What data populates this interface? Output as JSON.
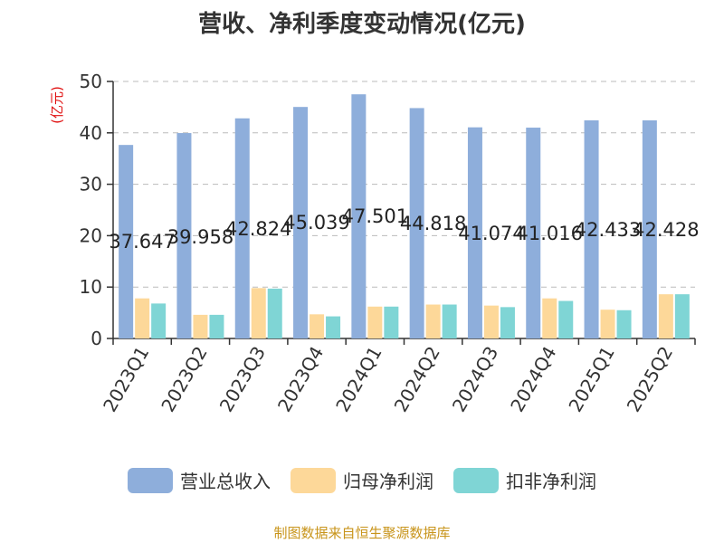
{
  "chart_data": {
    "type": "bar",
    "title": "营收、净利季度变动情况(亿元)",
    "ylabel": "(亿元)",
    "ylim": [
      0,
      50
    ],
    "yticks": [
      0,
      10,
      20,
      30,
      40,
      50
    ],
    "grid": true,
    "legend_position": "bottom",
    "categories": [
      "2023Q1",
      "2023Q2",
      "2023Q3",
      "2023Q4",
      "2024Q1",
      "2024Q2",
      "2024Q3",
      "2024Q4",
      "2025Q1",
      "2025Q2"
    ],
    "series": [
      {
        "name": "营业总收入",
        "color": "#8eaedb",
        "values": [
          37.647,
          39.958,
          42.824,
          45.039,
          47.501,
          44.818,
          41.074,
          41.016,
          42.433,
          42.428
        ],
        "labels": [
          "37.647",
          "39.958",
          "42.824",
          "45.039",
          "47.501",
          "44.818",
          "41.074",
          "41.016",
          "42.433",
          "42.428"
        ]
      },
      {
        "name": "归母净利润",
        "color": "#fdd899",
        "values": [
          7.8,
          4.6,
          9.8,
          4.7,
          6.2,
          6.6,
          6.4,
          7.8,
          5.6,
          8.6
        ]
      },
      {
        "name": "扣非净利润",
        "color": "#7fd5d5",
        "values": [
          6.8,
          4.6,
          9.7,
          4.3,
          6.2,
          6.6,
          6.1,
          7.3,
          5.5,
          8.6
        ]
      }
    ]
  },
  "colors": {
    "axis": "#333333",
    "grid": "#bbbbbb",
    "ylabel": "#e01010",
    "source": "#c8941a"
  },
  "source": "制图数据来自恒生聚源数据库"
}
